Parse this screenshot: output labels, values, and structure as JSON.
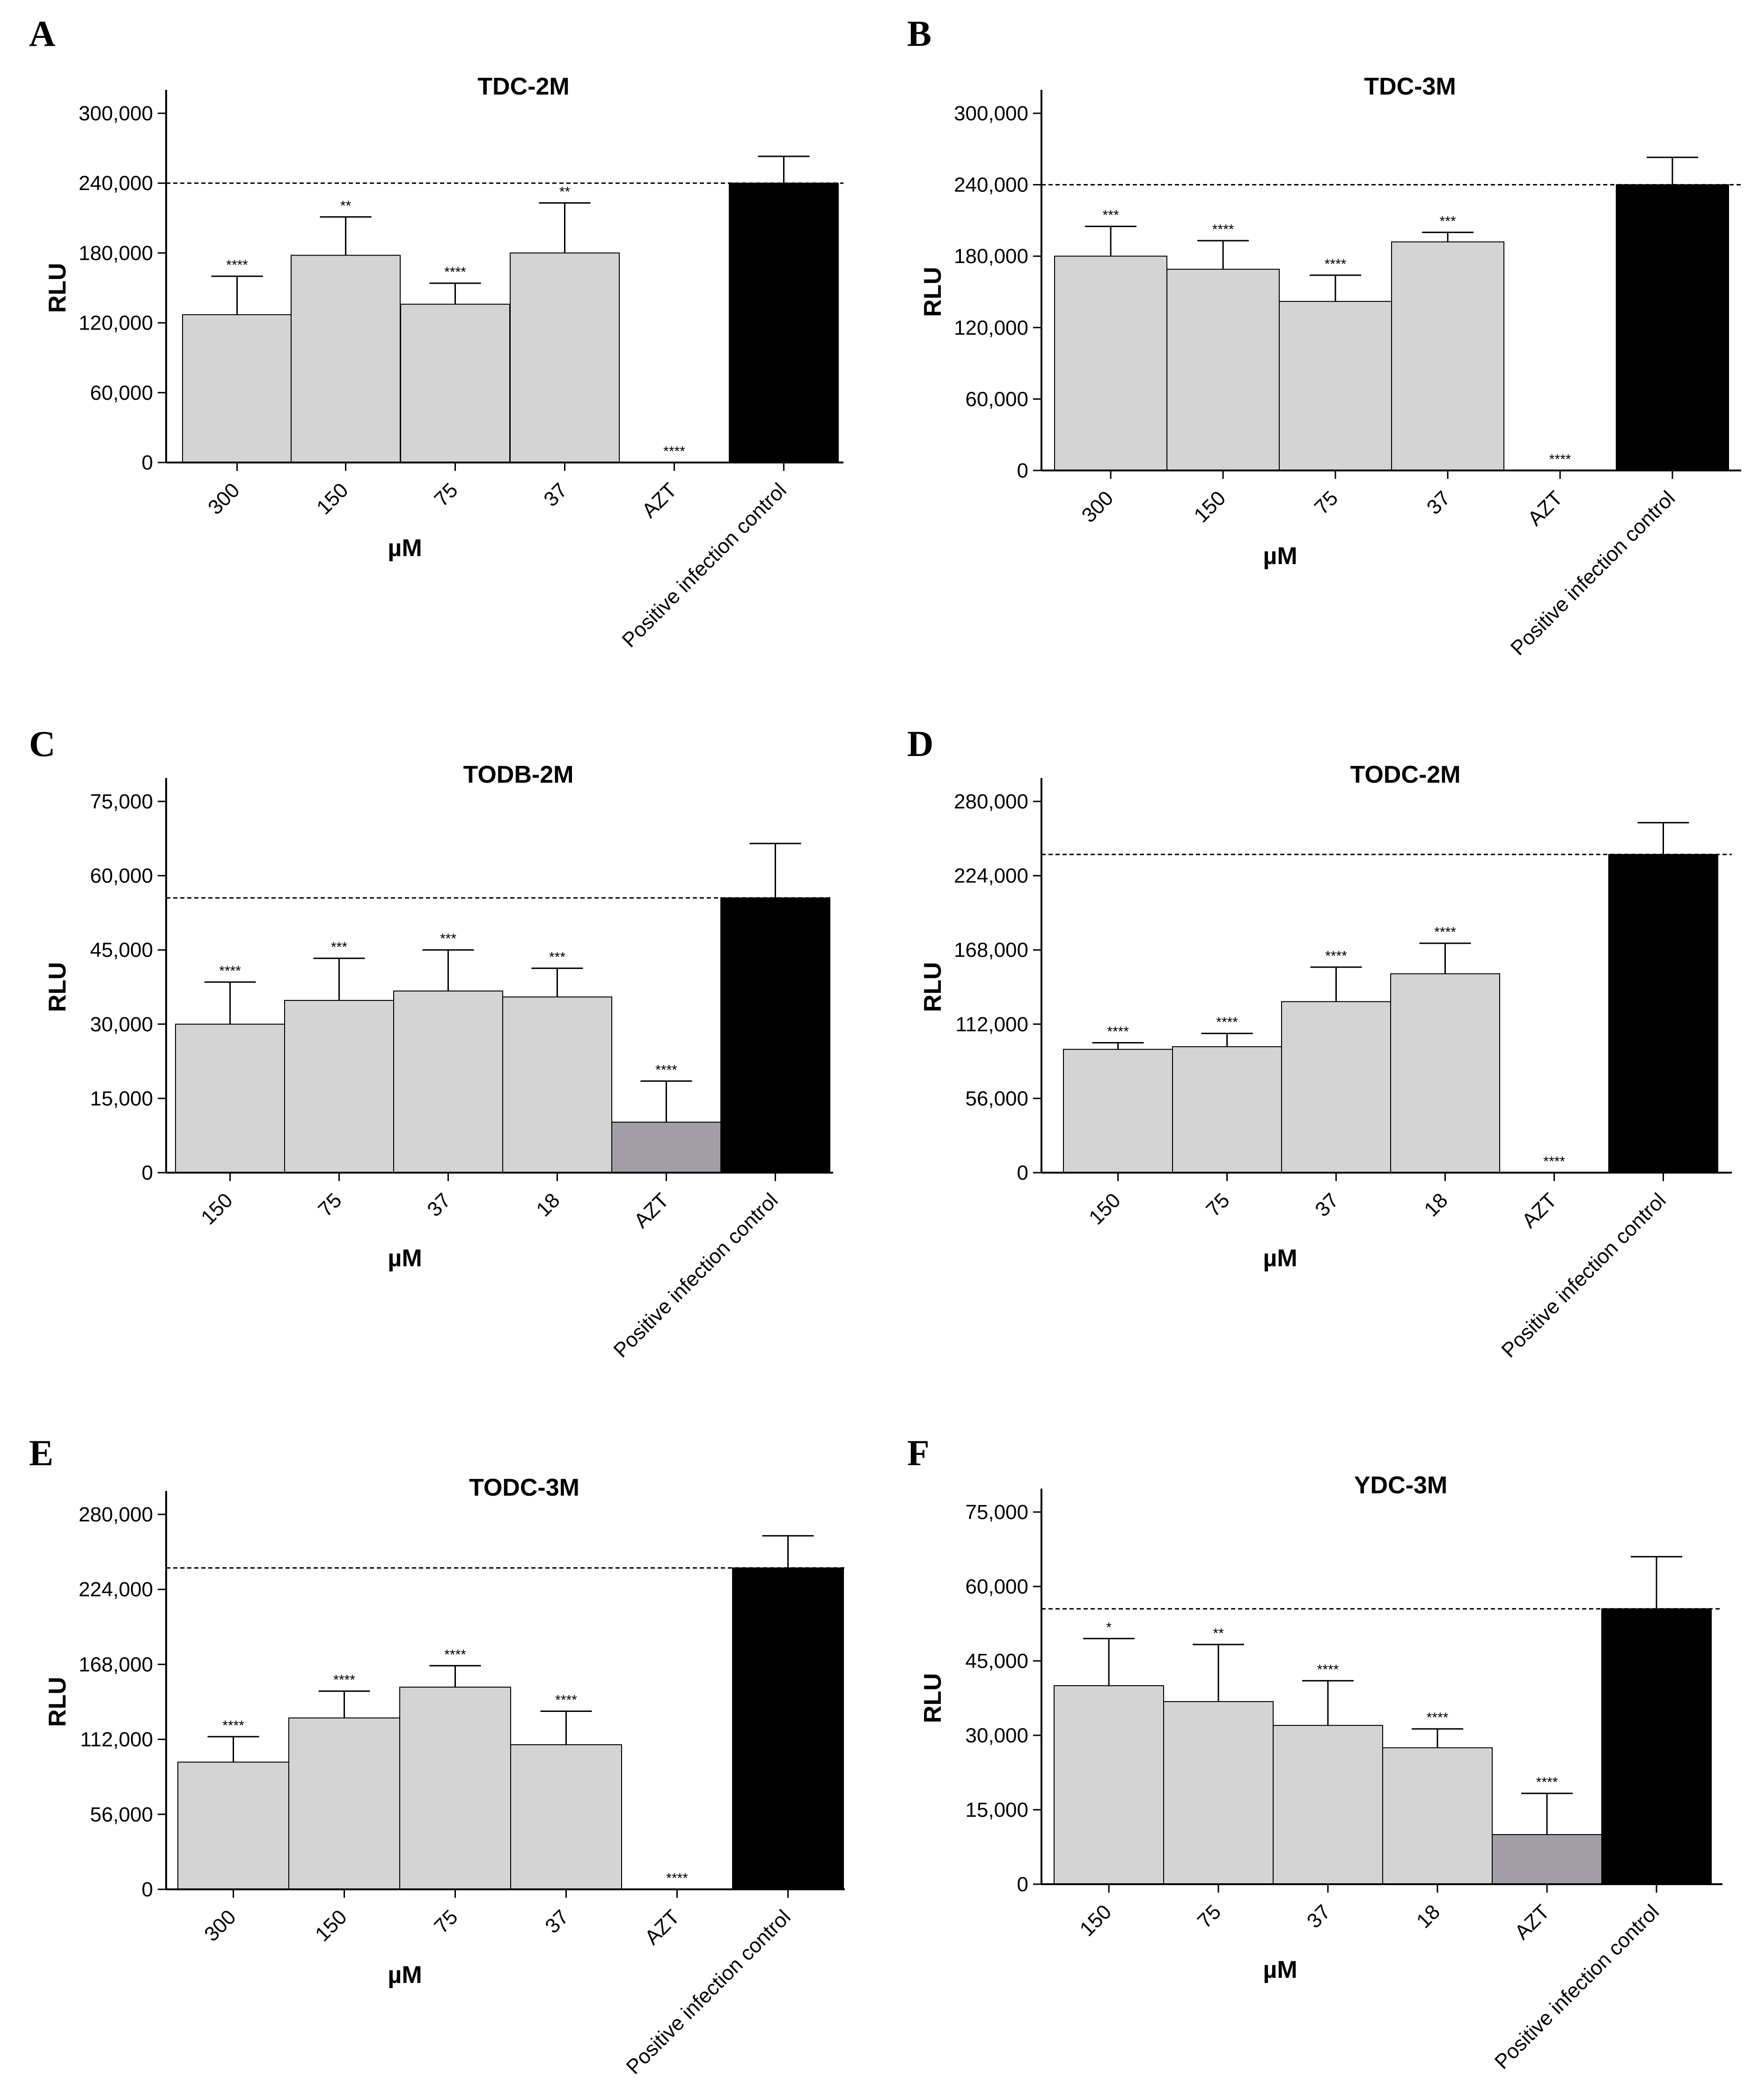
{
  "colors": {
    "light_bar": "#d4d4d4",
    "mid_bar": "#a19fa5",
    "dark_bar": "#000000",
    "axis": "#000000",
    "reference_line": "#000000"
  },
  "chart_data": [
    {
      "panel": "A",
      "type": "bar",
      "title": "TDC-2M",
      "xlabel": "µM",
      "ylabel": "RLU",
      "ylim": [
        0,
        300000
      ],
      "yticks": [
        0,
        60000,
        120000,
        180000,
        240000,
        300000
      ],
      "ytick_labels": [
        "0",
        "60,000",
        "120,000",
        "180,000",
        "240,000",
        "300,000"
      ],
      "categories": [
        "300",
        "150",
        "75",
        "37",
        "AZT",
        "Positive infection control"
      ],
      "values": [
        127000,
        178000,
        136000,
        180000,
        0,
        240000
      ],
      "errors": [
        33000,
        33000,
        18000,
        43000,
        0,
        23000
      ],
      "significance": [
        "****",
        "**",
        "****",
        "**",
        "****",
        ""
      ],
      "bar_colors": [
        "light_bar",
        "light_bar",
        "light_bar",
        "light_bar",
        "light_bar",
        "dark_bar"
      ],
      "reference_line": 240000
    },
    {
      "panel": "B",
      "type": "bar",
      "title": "TDC-3M",
      "xlabel": "µM",
      "ylabel": "RLU",
      "ylim": [
        0,
        300000
      ],
      "yticks": [
        0,
        60000,
        120000,
        180000,
        240000,
        300000
      ],
      "ytick_labels": [
        "0",
        "60,000",
        "120,000",
        "180,000",
        "240,000",
        "300,000"
      ],
      "categories": [
        "300",
        "150",
        "75",
        "37",
        "AZT",
        "Positive infection control"
      ],
      "values": [
        180000,
        169000,
        142000,
        192000,
        0,
        240000
      ],
      "errors": [
        25000,
        24000,
        22000,
        8000,
        0,
        23000
      ],
      "significance": [
        "***",
        "****",
        "****",
        "***",
        "****",
        ""
      ],
      "bar_colors": [
        "light_bar",
        "light_bar",
        "light_bar",
        "light_bar",
        "light_bar",
        "dark_bar"
      ],
      "reference_line": 240000
    },
    {
      "panel": "C",
      "type": "bar",
      "title": "TODB-2M",
      "xlabel": "µM",
      "ylabel": "RLU",
      "ylim": [
        0,
        75000
      ],
      "yticks": [
        0,
        15000,
        30000,
        45000,
        60000,
        75000
      ],
      "ytick_labels": [
        "0",
        "15,000",
        "30,000",
        "45,000",
        "60,000",
        "75,000"
      ],
      "categories": [
        "150",
        "75",
        "37",
        "18",
        "AZT",
        "Positive infection control"
      ],
      "values": [
        30000,
        34800,
        36700,
        35500,
        10200,
        55500
      ],
      "errors": [
        8500,
        8500,
        8300,
        5800,
        8300,
        11000
      ],
      "significance": [
        "****",
        "***",
        "***",
        "***",
        "****",
        ""
      ],
      "bar_colors": [
        "light_bar",
        "light_bar",
        "light_bar",
        "light_bar",
        "mid_bar",
        "dark_bar"
      ],
      "reference_line": 55500
    },
    {
      "panel": "D",
      "type": "bar",
      "title": "TODC-2M",
      "xlabel": "µM",
      "ylabel": "RLU",
      "ylim": [
        0,
        280000
      ],
      "yticks": [
        0,
        56000,
        112000,
        168000,
        224000,
        280000
      ],
      "ytick_labels": [
        "0",
        "56,000",
        "112,000",
        "168,000",
        "224,000",
        "280,000"
      ],
      "categories": [
        "150",
        "75",
        "37",
        "18",
        "AZT",
        "Positive infection control"
      ],
      "values": [
        93000,
        95000,
        129000,
        150000,
        0,
        240000
      ],
      "errors": [
        5000,
        10000,
        26000,
        23000,
        0,
        24000
      ],
      "significance": [
        "****",
        "****",
        "****",
        "****",
        "****",
        ""
      ],
      "bar_colors": [
        "light_bar",
        "light_bar",
        "light_bar",
        "light_bar",
        "light_bar",
        "dark_bar"
      ],
      "reference_line": 240000
    },
    {
      "panel": "E",
      "type": "bar",
      "title": "TODC-3M",
      "xlabel": "µM",
      "ylabel": "RLU",
      "ylim": [
        0,
        280000
      ],
      "yticks": [
        0,
        56000,
        112000,
        168000,
        224000,
        280000
      ],
      "ytick_labels": [
        "0",
        "56,000",
        "112,000",
        "168,000",
        "224,000",
        "280,000"
      ],
      "categories": [
        "300",
        "150",
        "75",
        "37",
        "AZT",
        "Positive infection control"
      ],
      "values": [
        95000,
        128000,
        151000,
        108000,
        0,
        240000
      ],
      "errors": [
        19000,
        20000,
        16000,
        25000,
        0,
        24000
      ],
      "significance": [
        "****",
        "****",
        "****",
        "****",
        "****",
        ""
      ],
      "bar_colors": [
        "light_bar",
        "light_bar",
        "light_bar",
        "light_bar",
        "light_bar",
        "dark_bar"
      ],
      "reference_line": 240000
    },
    {
      "panel": "F",
      "type": "bar",
      "title": "YDC-3M",
      "xlabel": "µM",
      "ylabel": "RLU",
      "ylim": [
        0,
        75000
      ],
      "yticks": [
        0,
        15000,
        30000,
        45000,
        60000,
        75000
      ],
      "ytick_labels": [
        "0",
        "15,000",
        "30,000",
        "45,000",
        "60,000",
        "75,000"
      ],
      "categories": [
        "150",
        "75",
        "37",
        "18",
        "AZT",
        "Positive infection control"
      ],
      "values": [
        40000,
        36800,
        32000,
        27500,
        10000,
        55500
      ],
      "errors": [
        9500,
        11500,
        9000,
        3800,
        8300,
        10500
      ],
      "significance": [
        "*",
        "**",
        "****",
        "****",
        "****",
        ""
      ],
      "bar_colors": [
        "light_bar",
        "light_bar",
        "light_bar",
        "light_bar",
        "mid_bar",
        "dark_bar"
      ],
      "reference_line": 55500
    }
  ]
}
